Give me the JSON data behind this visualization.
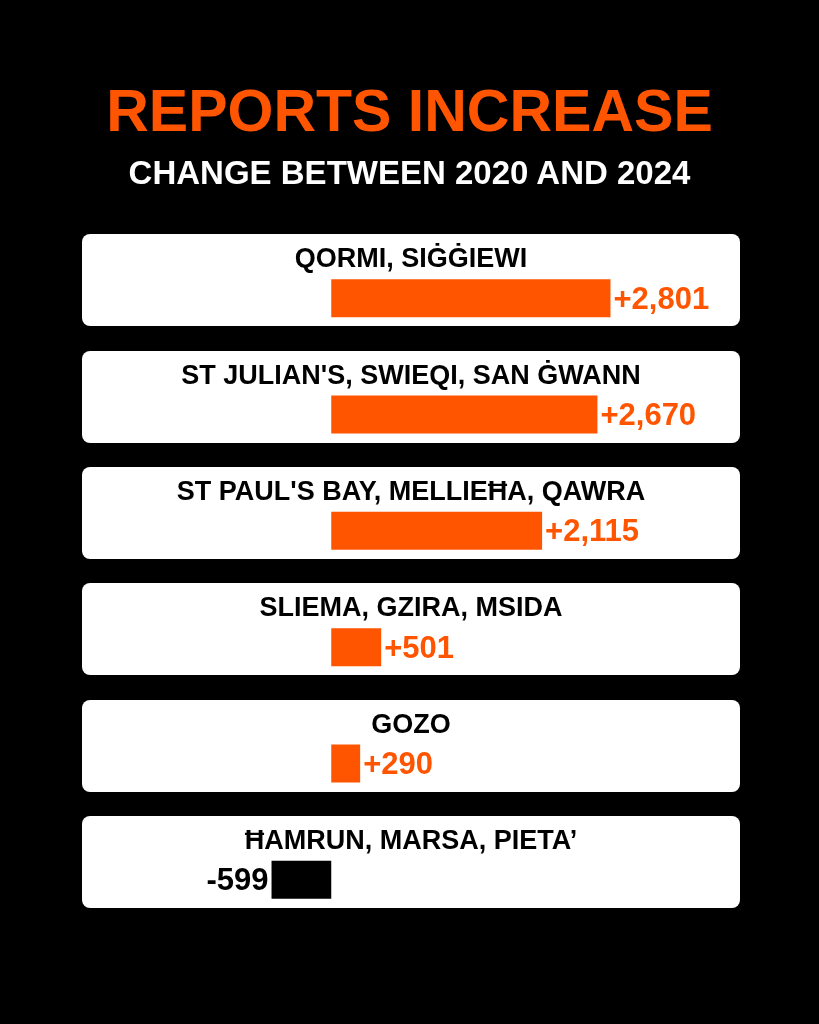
{
  "chart_data": {
    "type": "bar",
    "orientation": "horizontal",
    "title": "REPORTS INCREASE",
    "subtitle": "CHANGE BETWEEN 2020 AND 2024",
    "categories": [
      "QORMI, SIĠĠIEWI",
      "ST JULIAN'S, SWIEQI, SAN ĠWANN",
      "ST PAUL'S BAY, MELLIEĦA, QAWRA",
      "SLIEMA, GZIRA, MSIDA",
      "GOZO",
      "ĦAMRUN, MARSA, PIETA’"
    ],
    "values": [
      2801,
      2670,
      2115,
      501,
      290,
      -599
    ],
    "colors": [
      "#ff5500",
      "#ff5500",
      "#ff5500",
      "#ff5500",
      "#ff5500",
      "#000000"
    ],
    "value_labels": [
      "+2,801",
      "+2,670",
      "+2,115",
      "+501",
      "+290",
      "-599"
    ],
    "xlim": [
      -2500,
      4100
    ],
    "tick_labels": "y"
  }
}
